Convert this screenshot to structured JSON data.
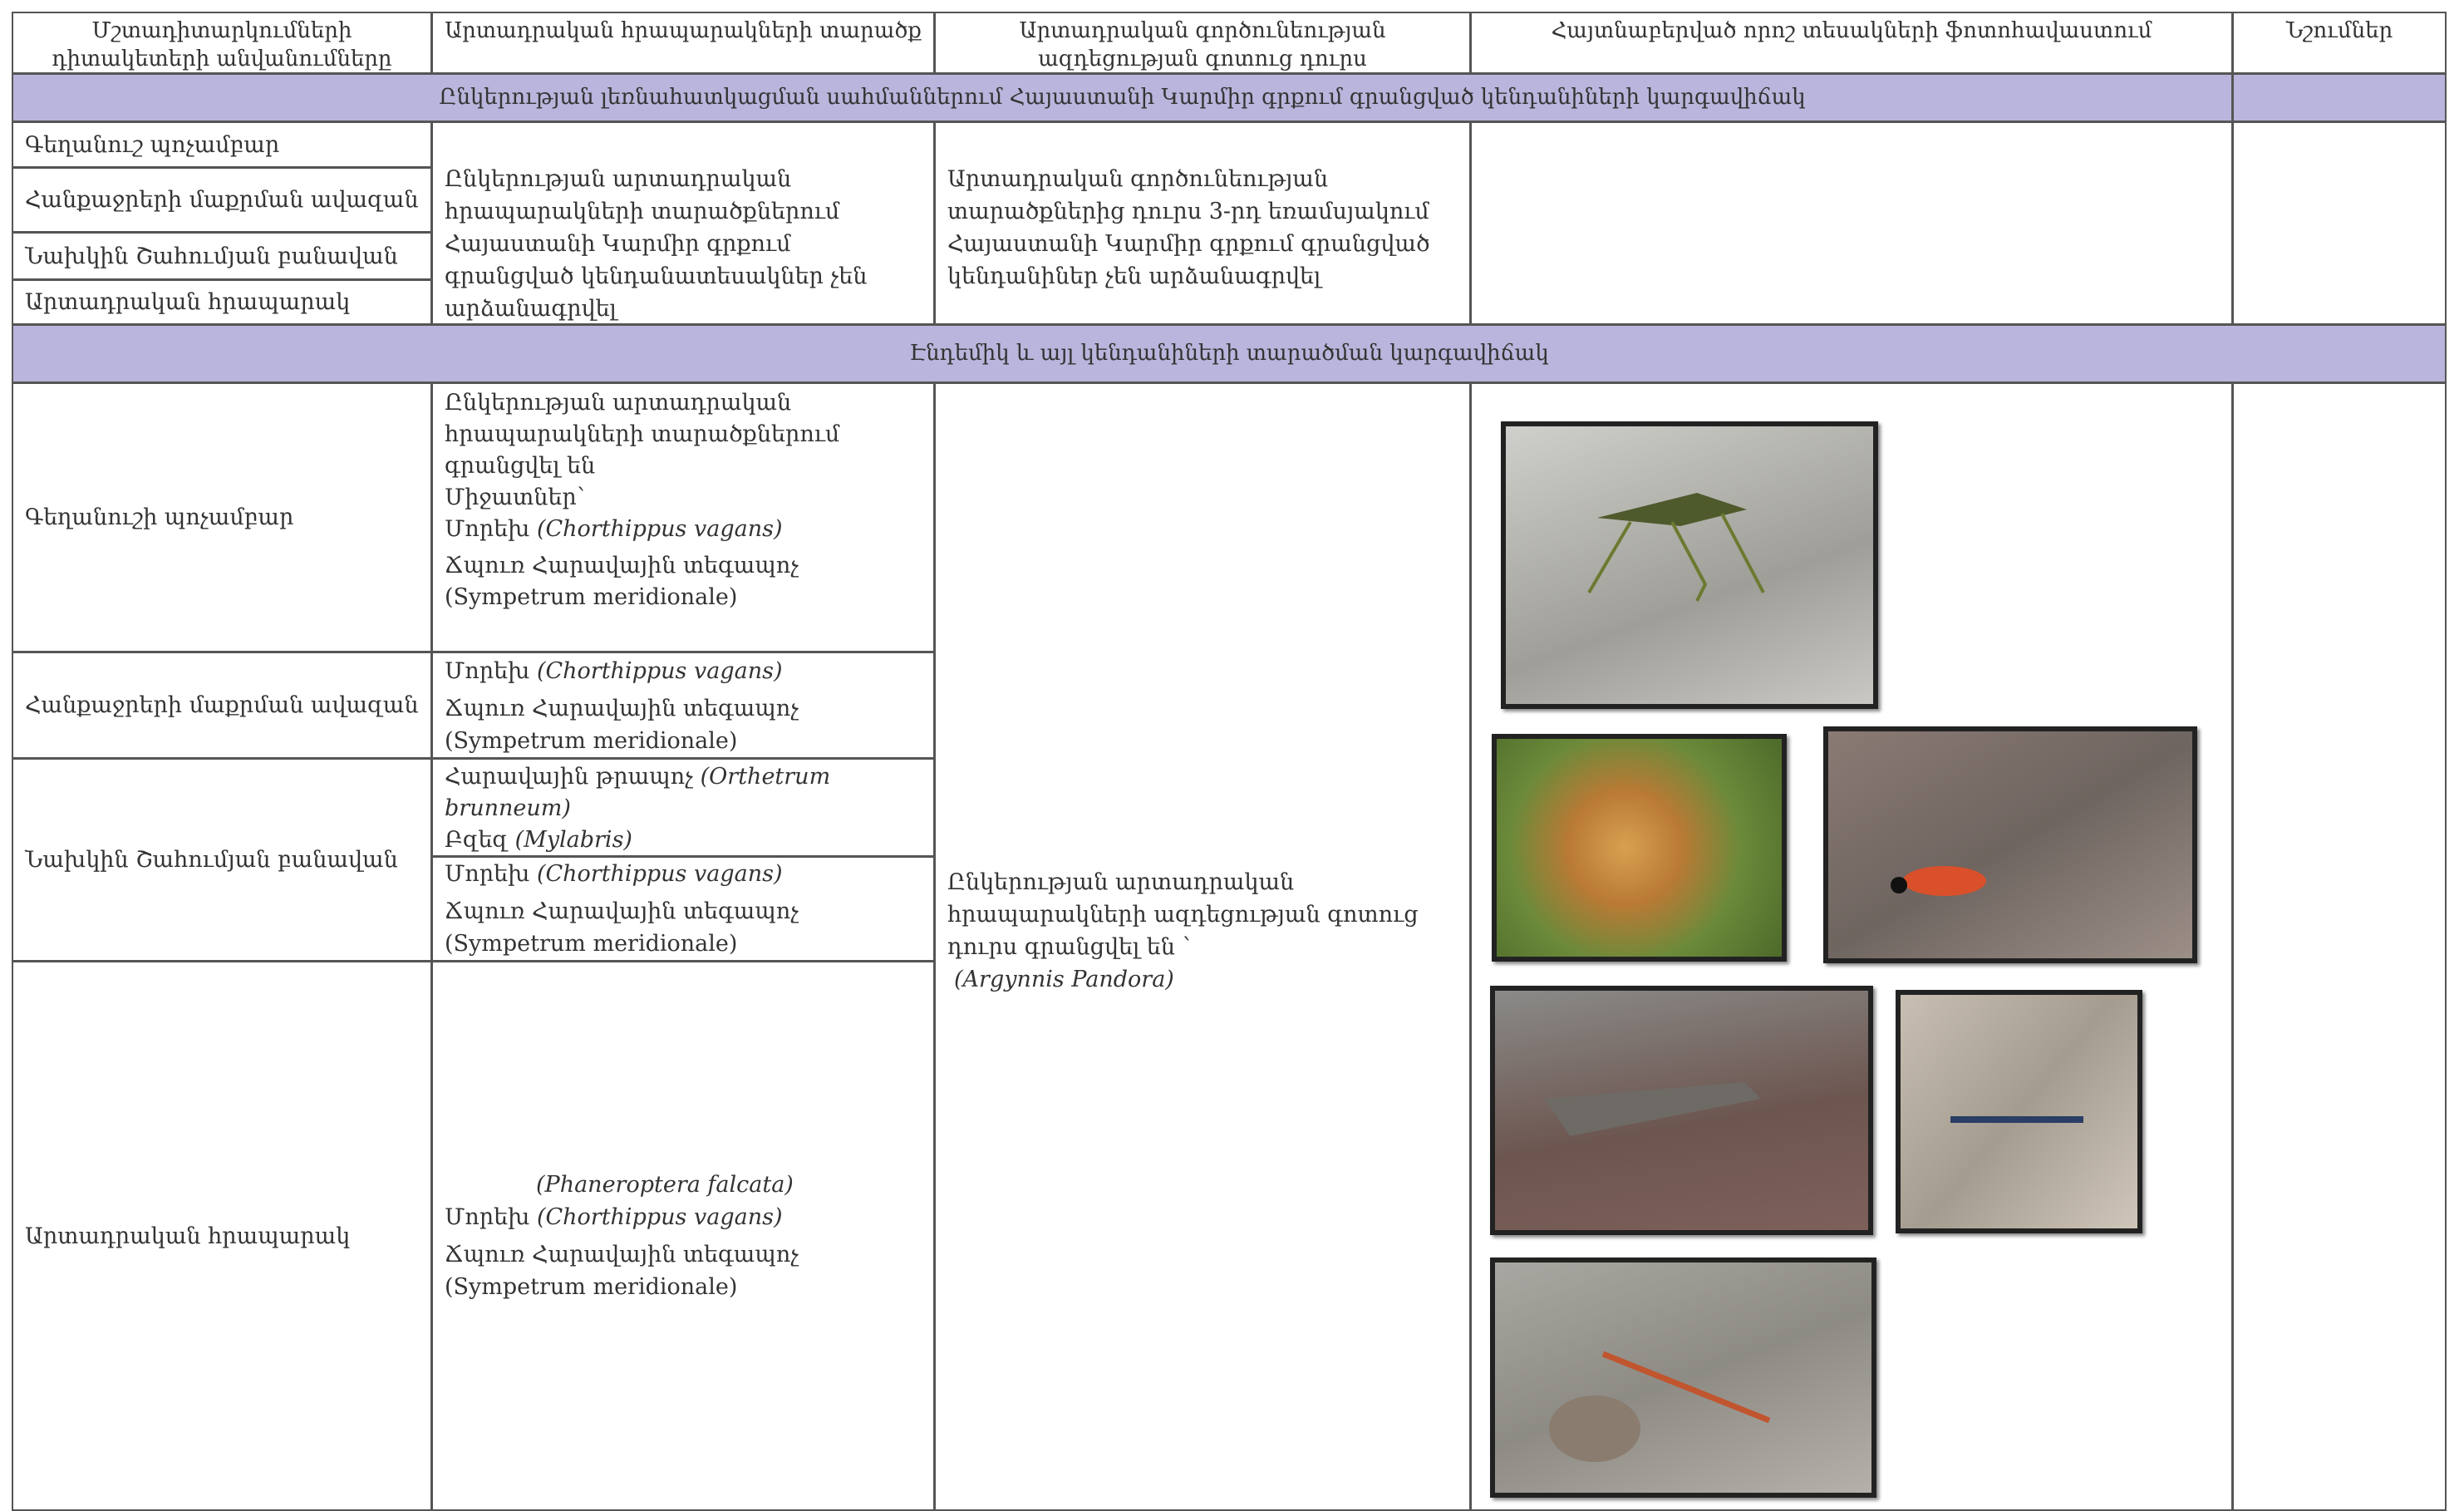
{
  "header": {
    "columns": [
      "Մշտադիտարկումների դիտակետերի անվանումները",
      "Արտադրական հրապարակների տարածք",
      "Արտադրական գործունեության ազդեցության գոտուց դուրս",
      "Հայտնաբերված որոշ տեսակների ֆոտոհավաստում",
      "Նշումներ"
    ]
  },
  "sections": [
    {
      "title": "Ընկերության լեռնահատկացման սահմաններում Հայաստանի Կարմիր գրքում գրանցված կենդանիների կարգավիճակ",
      "rows": [
        "Գեղանուշ պոչամբար",
        "Հանքաջրերի մաքրման ավազան",
        "Նախկին Շահումյան բանավան",
        "Արտադրական հրապարակ"
      ],
      "territory": "Ընկերության արտադրական հրապարակների տարածքներում Հայաստանի Կարմիր գրքում գրանցված կենդանատեսակներ չեն արձանագրվել",
      "outside": "Արտադրական գործունեության տարածքներից դուրս 3-րդ եռամսյակում Հայաստանի Կարմիր գրքում գրանցված կենդանիներ չեն արձանագրվել"
    },
    {
      "title": "Էնդեմիկ և այլ կենդանիների տարածման կարգավիճակ",
      "rows": [
        {
          "name": "Գեղանուշի պոչամբար",
          "species": [
            {
              "text": "Ընկերության արտադրական հրապարակների տարածքներում գրանցվել են"
            },
            {
              "text": "Միջատներ՝"
            },
            {
              "text": "Մորեխ",
              "latin": "(Chorthippus vagans)"
            },
            {
              "text": "Ճպուռ Հարավային տեգապոչ (Sympetrum meridionale)"
            }
          ]
        },
        {
          "name": "Հանքաջրերի մաքրման ավազան",
          "species": [
            {
              "text": "Մորեխ",
              "latin": "(Chorthippus vagans)"
            },
            {
              "text": "Ճպուռ Հարավային տեգապոչ (Sympetrum meridionale)"
            }
          ]
        },
        {
          "name": "Նախկին Շահումյան բանավան",
          "species": [
            {
              "text": "Հարավային թրապոչ",
              "latin": "(Orthetrum brunneum)"
            },
            {
              "text": "Բզեզ",
              "latin": "(Mylabris)"
            },
            {
              "text": "Մորեխ",
              "latin": "(Chorthippus vagans)"
            },
            {
              "text": "Ճպուռ Հարավային տեգապոչ (Sympetrum meridionale)"
            }
          ]
        },
        {
          "name": "Արտադրական հրապարակ",
          "species": [
            {
              "latin": "(Phaneroptera falcata)"
            },
            {
              "text": "Մորեխ",
              "latin": "(Chorthippus vagans)"
            },
            {
              "text": "Ճպուռ Հարավային տեգապոչ (Sympetrum meridionale)"
            }
          ]
        }
      ],
      "outside": "Ընկերության արտադրական հրապարակների ազդեցության գոտուց դուրս գրանցվել են ՝",
      "outside_species": "(Argynnis Pandora)"
    }
  ]
}
